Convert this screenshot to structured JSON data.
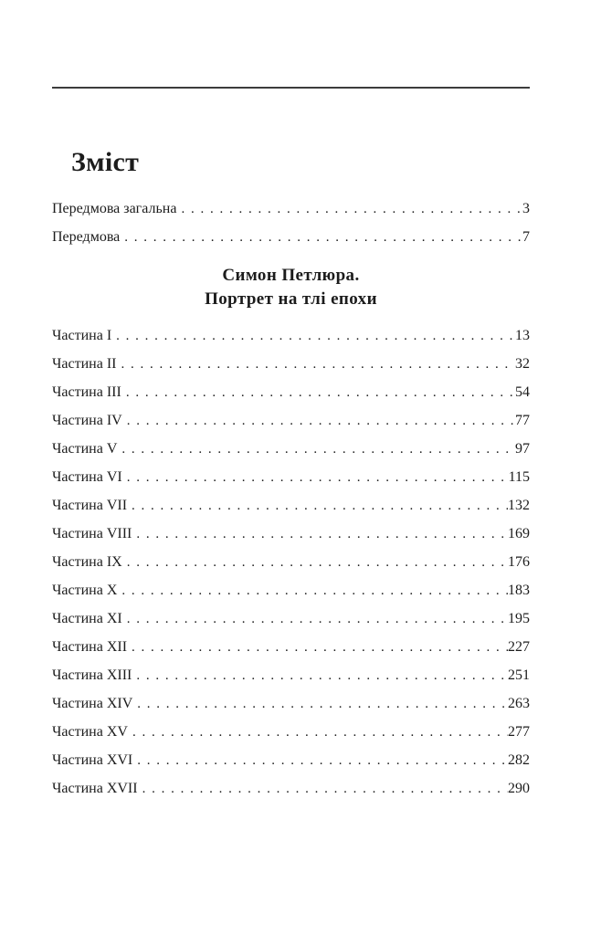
{
  "page": {
    "toc_title": "Зміст",
    "section_heading": {
      "line1": "Симон Петлюра.",
      "line2": "Портрет на тлі епохи"
    },
    "preface_entries": [
      {
        "label": "Передмова загальна",
        "page": "3"
      },
      {
        "label": "Передмова",
        "page": "7"
      }
    ],
    "part_entries": [
      {
        "label": "Частина I",
        "page": "13"
      },
      {
        "label": "Частина II",
        "page": "32"
      },
      {
        "label": "Частина III",
        "page": "54"
      },
      {
        "label": "Частина IV",
        "page": "77"
      },
      {
        "label": "Частина V",
        "page": "97"
      },
      {
        "label": "Частина VI",
        "page": "115"
      },
      {
        "label": "Частина VII",
        "page": "132"
      },
      {
        "label": "Частина VIII",
        "page": "169"
      },
      {
        "label": "Частина IX",
        "page": "176"
      },
      {
        "label": "Частина X",
        "page": "183"
      },
      {
        "label": "Частина XI",
        "page": "195"
      },
      {
        "label": "Частина XII",
        "page": "227"
      },
      {
        "label": "Частина XIII",
        "page": "251"
      },
      {
        "label": "Частина XIV",
        "page": "263"
      },
      {
        "label": "Частина XV",
        "page": "277"
      },
      {
        "label": "Частина XVI",
        "page": "282"
      },
      {
        "label": "Частина XVII",
        "page": "290"
      }
    ]
  }
}
